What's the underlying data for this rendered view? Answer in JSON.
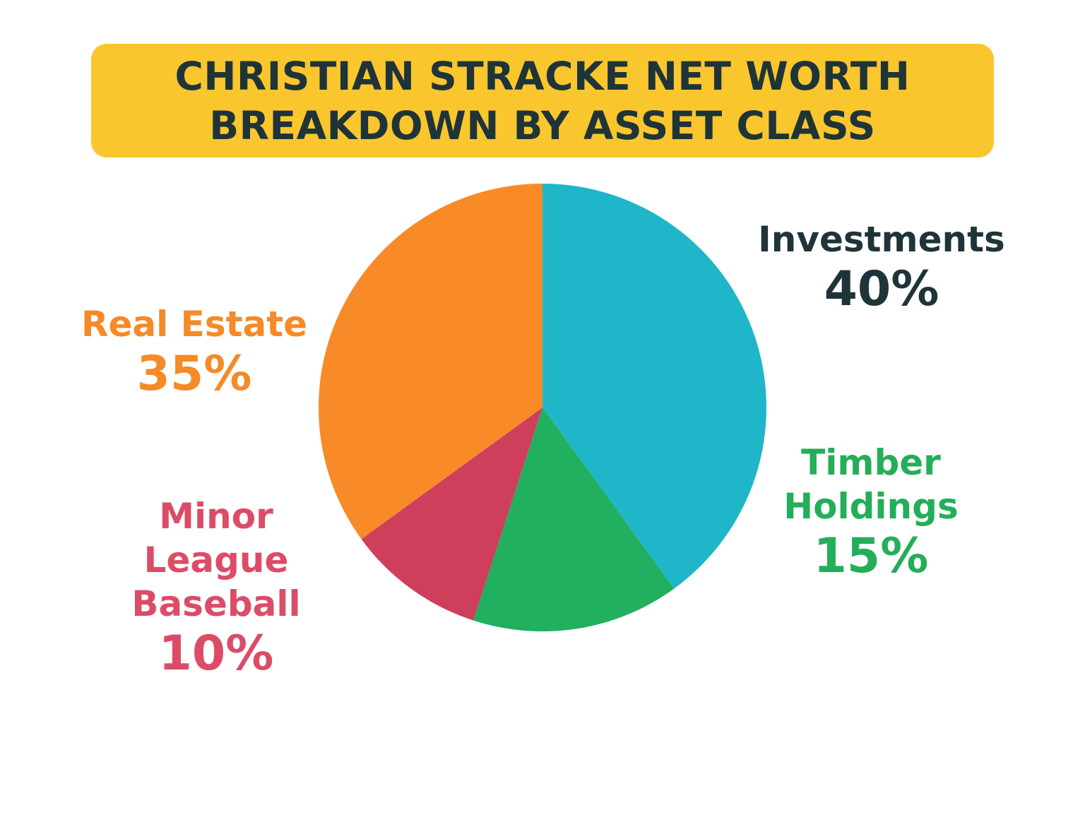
{
  "title_lines": [
    "CHRISTIAN STRACKE NET WORTH",
    "BREAKDOWN BY ASSET CLASS"
  ],
  "chart_data": {
    "type": "pie",
    "title": "CHRISTIAN STRACKE NET WORTH BREAKDOWN BY ASSET CLASS",
    "slices": [
      {
        "label": "Investments",
        "display_label": "Investments",
        "value": 40,
        "value_label": "40%",
        "color": "#1FB6C9",
        "text_color": "#1F3438"
      },
      {
        "label": "Timber Holdings",
        "display_label": "Timber\nHoldings",
        "value": 15,
        "value_label": "15%",
        "color": "#21AF60",
        "text_color": "#24AE59"
      },
      {
        "label": "Minor League Baseball",
        "display_label": "Minor\nLeague\nBaseball",
        "value": 10,
        "value_label": "10%",
        "color": "#CE3F5C",
        "text_color": "#DC4C67"
      },
      {
        "label": "Real Estate",
        "display_label": "Real Estate",
        "value": 35,
        "value_label": "35%",
        "color": "#F98A28",
        "text_color": "#F58A27"
      }
    ]
  }
}
